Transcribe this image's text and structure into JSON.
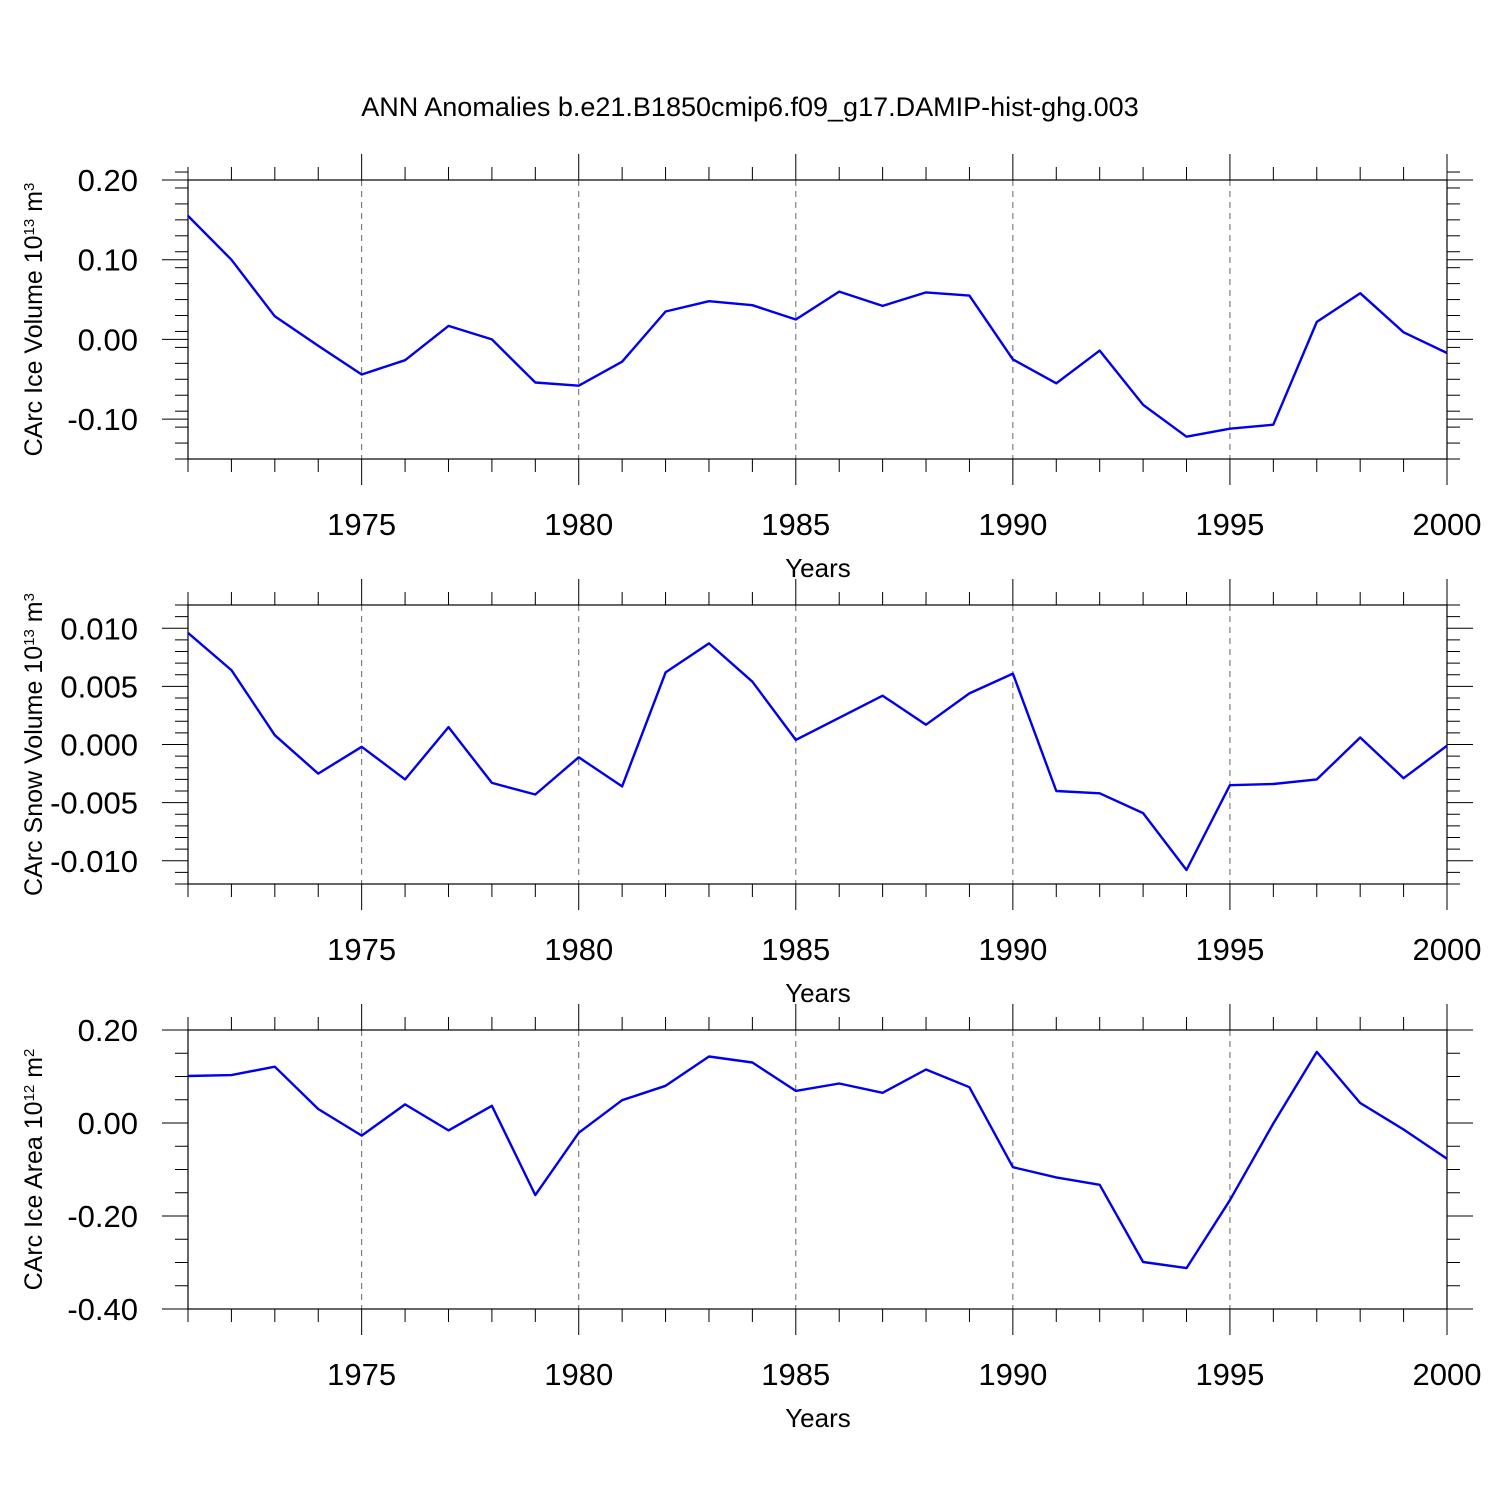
{
  "figure": {
    "title": "ANN Anomalies b.e21.B1850cmip6.f09_g17.DAMIP-hist-ghg.003"
  },
  "chart_data": [
    {
      "type": "line",
      "title": "",
      "xlabel": "Years",
      "ylabel_main": "CArc Ice Volume 10",
      "ylabel_exp": "13",
      "ylabel_unit": " m",
      "ylabel_unit_exp": "3",
      "xlim": [
        1971,
        2000
      ],
      "ylim": [
        -0.15,
        0.2
      ],
      "yticks": [
        -0.1,
        0.0,
        0.1,
        0.2
      ],
      "ytick_labels": [
        "-0.10",
        "0.00",
        "0.10",
        "0.20"
      ],
      "yminor_step": 0.02,
      "xticks": [
        1975,
        1980,
        1985,
        1990,
        1995,
        2000
      ],
      "xtick_labels": [
        "1975",
        "1980",
        "1985",
        "1990",
        "1995",
        "2000"
      ],
      "grid_x": [
        1975,
        1980,
        1985,
        1990,
        1995
      ],
      "line_color": "#0000ee",
      "x": [
        1971,
        1972,
        1973,
        1974,
        1975,
        1976,
        1977,
        1978,
        1979,
        1980,
        1981,
        1982,
        1983,
        1984,
        1985,
        1986,
        1987,
        1988,
        1989,
        1990,
        1991,
        1992,
        1993,
        1994,
        1995,
        1996,
        1997,
        1998,
        1999,
        2000
      ],
      "values": [
        0.155,
        0.1,
        0.029,
        -0.008,
        -0.044,
        -0.026,
        0.017,
        0.0,
        -0.054,
        -0.058,
        -0.028,
        0.035,
        0.048,
        0.043,
        0.025,
        0.06,
        0.042,
        0.059,
        0.055,
        -0.025,
        -0.055,
        -0.014,
        -0.082,
        -0.122,
        -0.112,
        -0.107,
        0.022,
        0.058,
        0.009,
        -0.017
      ]
    },
    {
      "type": "line",
      "title": "",
      "xlabel": "Years",
      "ylabel_main": "CArc Snow Volume 10",
      "ylabel_exp": "13",
      "ylabel_unit": " m",
      "ylabel_unit_exp": "3",
      "xlim": [
        1971,
        2000
      ],
      "ylim": [
        -0.012,
        0.012
      ],
      "yticks": [
        -0.01,
        -0.005,
        0.0,
        0.005,
        0.01
      ],
      "ytick_labels": [
        "-0.010",
        "-0.005",
        "0.000",
        "0.005",
        "0.010"
      ],
      "yminor_step": 0.001,
      "xticks": [
        1975,
        1980,
        1985,
        1990,
        1995,
        2000
      ],
      "xtick_labels": [
        "1975",
        "1980",
        "1985",
        "1990",
        "1995",
        "2000"
      ],
      "grid_x": [
        1975,
        1980,
        1985,
        1990,
        1995
      ],
      "line_color": "#0000ee",
      "x": [
        1971,
        1972,
        1973,
        1974,
        1975,
        1976,
        1977,
        1978,
        1979,
        1980,
        1981,
        1982,
        1983,
        1984,
        1985,
        1986,
        1987,
        1988,
        1989,
        1990,
        1991,
        1992,
        1993,
        1994,
        1995,
        1996,
        1997,
        1998,
        1999,
        2000
      ],
      "values": [
        0.0096,
        0.0064,
        0.0008,
        -0.0025,
        -0.0002,
        -0.003,
        0.0015,
        -0.0033,
        -0.0043,
        -0.0011,
        -0.0036,
        0.0062,
        0.0087,
        0.0054,
        0.0004,
        0.0023,
        0.0042,
        0.0017,
        0.0044,
        0.0061,
        -0.004,
        -0.0042,
        -0.0059,
        -0.0108,
        -0.0035,
        -0.0034,
        -0.003,
        0.0006,
        -0.0029,
        -0.0001
      ]
    },
    {
      "type": "line",
      "title": "",
      "xlabel": "Years",
      "ylabel_main": "CArc Ice Area 10",
      "ylabel_exp": "12",
      "ylabel_unit": " m",
      "ylabel_unit_exp": "2",
      "xlim": [
        1971,
        2000
      ],
      "ylim": [
        -0.4,
        0.2
      ],
      "yticks": [
        -0.4,
        -0.2,
        0.0,
        0.2
      ],
      "ytick_labels": [
        "-0.40",
        "-0.20",
        "0.00",
        "0.20"
      ],
      "yminor_step": 0.05,
      "xticks": [
        1975,
        1980,
        1985,
        1990,
        1995,
        2000
      ],
      "xtick_labels": [
        "1975",
        "1980",
        "1985",
        "1990",
        "1995",
        "2000"
      ],
      "grid_x": [
        1975,
        1980,
        1985,
        1990,
        1995
      ],
      "line_color": "#0000ee",
      "x": [
        1971,
        1972,
        1973,
        1974,
        1975,
        1976,
        1977,
        1978,
        1979,
        1980,
        1981,
        1982,
        1983,
        1984,
        1985,
        1986,
        1987,
        1988,
        1989,
        1990,
        1991,
        1992,
        1993,
        1994,
        1995,
        1996,
        1997,
        1998,
        1999,
        2000
      ],
      "values": [
        0.101,
        0.103,
        0.121,
        0.03,
        -0.027,
        0.04,
        -0.016,
        0.037,
        -0.155,
        -0.021,
        0.049,
        0.08,
        0.143,
        0.13,
        0.069,
        0.085,
        0.065,
        0.115,
        0.077,
        -0.095,
        -0.117,
        -0.133,
        -0.299,
        -0.312,
        -0.166,
        -0.001,
        0.153,
        0.043,
        -0.014,
        -0.077
      ]
    }
  ]
}
